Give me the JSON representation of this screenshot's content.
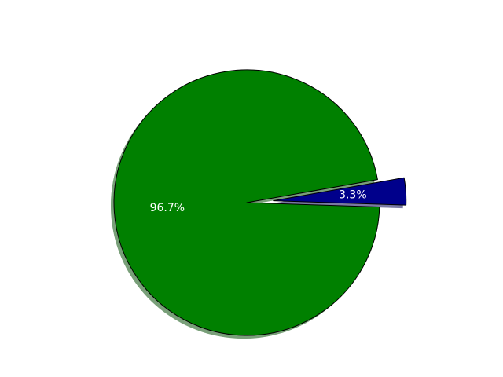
{
  "chart_data": {
    "type": "pie",
    "slices": [
      {
        "label": "96.7%",
        "value": 96.7,
        "color": "#008000",
        "exploded": false
      },
      {
        "label": "3.3%",
        "value": 3.3,
        "color": "#00008b",
        "exploded": true
      }
    ],
    "shadow": true,
    "legend": "none",
    "title": ""
  }
}
